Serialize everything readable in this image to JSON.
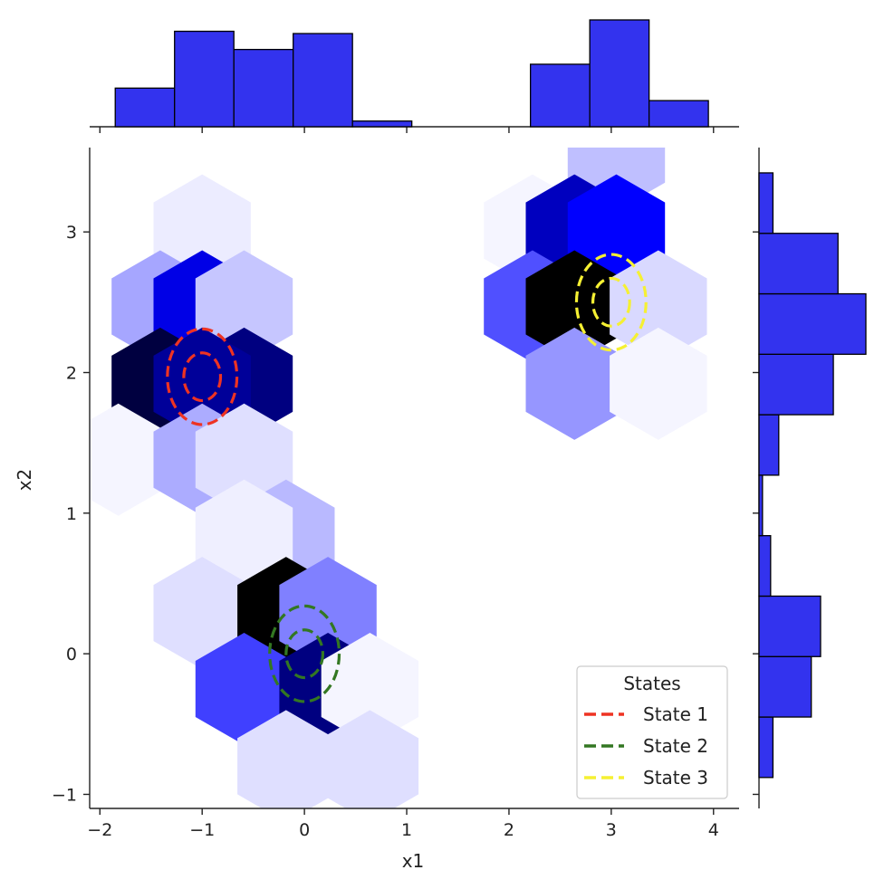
{
  "chart_data": {
    "type": "hexbin-joint",
    "title": "",
    "xlabel": "x1",
    "ylabel": "x2",
    "xlim": [
      -2.1,
      4.25
    ],
    "ylim": [
      -1.1,
      3.6
    ],
    "x_ticks": [
      -2,
      -1,
      0,
      1,
      2,
      3,
      4
    ],
    "y_ticks": [
      -1,
      0,
      1,
      2,
      3
    ],
    "x_tick_labels": [
      "−2",
      "−1",
      "0",
      "1",
      "2",
      "3",
      "4"
    ],
    "y_tick_labels": [
      "−1",
      "0",
      "1",
      "2",
      "3"
    ],
    "colors": {
      "hex_base": "#0000ff",
      "hist_fill": "#3333ee",
      "hist_edge": "#000000",
      "state1": "#ee3322",
      "state2": "#337722",
      "state3": "#f5f033"
    },
    "hexbins": [
      {
        "x": -1.0,
        "y": 3.01,
        "density": 0.06
      },
      {
        "x": -1.41,
        "y": 2.47,
        "density": 0.28
      },
      {
        "x": -1.0,
        "y": 2.47,
        "density": 0.82
      },
      {
        "x": -0.59,
        "y": 2.47,
        "density": 0.18
      },
      {
        "x": -1.41,
        "y": 1.92,
        "density": 0.95
      },
      {
        "x": -0.59,
        "y": 1.92,
        "density": 0.9
      },
      {
        "x": -1.0,
        "y": 1.92,
        "density": 0.88
      },
      {
        "x": -1.82,
        "y": 1.38,
        "density": 0.03
      },
      {
        "x": -1.0,
        "y": 1.38,
        "density": 0.26
      },
      {
        "x": -0.59,
        "y": 1.38,
        "density": 0.1
      },
      {
        "x": -0.18,
        "y": 0.84,
        "density": 0.22
      },
      {
        "x": -0.59,
        "y": 0.84,
        "density": 0.05
      },
      {
        "x": -1.0,
        "y": 0.29,
        "density": 0.1
      },
      {
        "x": -0.18,
        "y": 0.29,
        "density": 1.0
      },
      {
        "x": 0.23,
        "y": 0.29,
        "density": 0.4
      },
      {
        "x": -0.59,
        "y": -0.25,
        "density": 0.6
      },
      {
        "x": 0.23,
        "y": -0.25,
        "density": 0.9
      },
      {
        "x": 0.64,
        "y": -0.25,
        "density": 0.03
      },
      {
        "x": -0.18,
        "y": -0.8,
        "density": 0.1
      },
      {
        "x": 0.64,
        "y": -0.8,
        "density": 0.1
      },
      {
        "x": 3.05,
        "y": 3.55,
        "density": 0.2
      },
      {
        "x": 2.23,
        "y": 3.01,
        "density": 0.03
      },
      {
        "x": 2.64,
        "y": 3.01,
        "density": 0.85
      },
      {
        "x": 3.05,
        "y": 3.01,
        "density": 0.8
      },
      {
        "x": 2.23,
        "y": 2.47,
        "density": 0.55
      },
      {
        "x": 2.64,
        "y": 2.47,
        "density": 1.0
      },
      {
        "x": 3.46,
        "y": 2.47,
        "density": 0.12
      },
      {
        "x": 2.64,
        "y": 1.92,
        "density": 0.33
      },
      {
        "x": 3.46,
        "y": 1.92,
        "density": 0.03
      }
    ],
    "legend": {
      "title": "States",
      "placement": "lower-right",
      "entries": [
        {
          "label": "State 1",
          "color": "#ee3322"
        },
        {
          "label": "State 2",
          "color": "#337722"
        },
        {
          "label": "State 3",
          "color": "#f5f033"
        }
      ]
    },
    "ellipses": [
      {
        "state": "State 1",
        "cx": -1.0,
        "cy": 1.97,
        "rx": [
          0.18,
          0.34
        ],
        "ry": [
          0.17,
          0.34
        ]
      },
      {
        "state": "State 2",
        "cx": 0.0,
        "cy": 0.0,
        "rx": [
          0.18,
          0.34
        ],
        "ry": [
          0.17,
          0.34
        ]
      },
      {
        "state": "State 3",
        "cx": 3.0,
        "cy": 2.5,
        "rx": [
          0.18,
          0.34
        ],
        "ry": [
          0.17,
          0.34
        ]
      }
    ],
    "x_hist": {
      "bin_edges": [
        -1.85,
        -1.27,
        -0.69,
        -0.11,
        0.47,
        1.05,
        1.63,
        2.21,
        2.79,
        3.37,
        3.95
      ],
      "counts": [
        34,
        84,
        68,
        82,
        5,
        0,
        0,
        55,
        94,
        23
      ]
    },
    "y_hist": {
      "bin_edges": [
        -0.88,
        -0.45,
        -0.02,
        0.41,
        0.84,
        1.27,
        1.7,
        2.13,
        2.56,
        2.99,
        3.42
      ],
      "counts": [
        12,
        45,
        53,
        10,
        3,
        17,
        64,
        92,
        68,
        12
      ]
    }
  }
}
